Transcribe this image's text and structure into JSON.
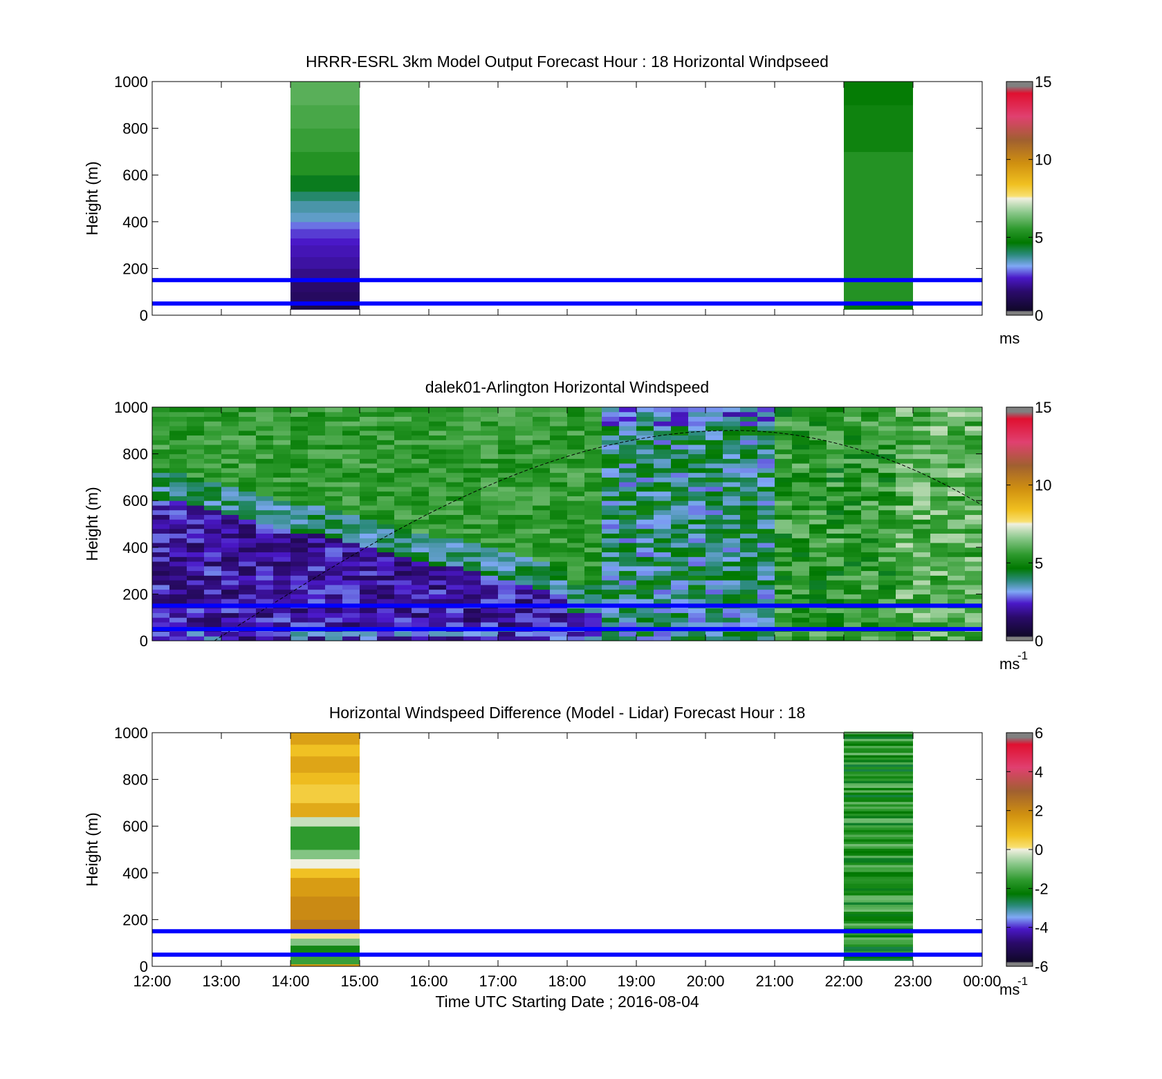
{
  "chart_data": [
    {
      "type": "heatmap",
      "id": "model",
      "title": "HRRR-ESRL 3km Model Output   Forecast Hour : 18 Horizontal Windpseed",
      "ylabel": "Height (m)",
      "xlim": [
        12,
        24
      ],
      "ylim": [
        0,
        1000
      ],
      "yticks": [
        0,
        200,
        400,
        600,
        800,
        1000
      ],
      "x_ticks_labeled": false,
      "colorbar": {
        "min": 0,
        "max": 15,
        "ticks": [
          0,
          5,
          10,
          15
        ],
        "unit_label": "ms",
        "unit_sup": ""
      },
      "reference_lines_m": [
        50,
        150
      ],
      "columns": [
        {
          "t_start": 14,
          "t_end": 15,
          "z_bottom": 25,
          "layers": [
            [
              25,
              60,
              0.5
            ],
            [
              60,
              100,
              1.0
            ],
            [
              100,
              150,
              1.2
            ],
            [
              150,
              200,
              1.5
            ],
            [
              200,
              250,
              1.8
            ],
            [
              250,
              300,
              2.0
            ],
            [
              300,
              330,
              2.2
            ],
            [
              330,
              370,
              2.4
            ],
            [
              370,
              400,
              2.7
            ],
            [
              400,
              440,
              3.3
            ],
            [
              440,
              490,
              3.5
            ],
            [
              490,
              530,
              3.9
            ],
            [
              530,
              600,
              4.4
            ],
            [
              600,
              700,
              5.3
            ],
            [
              700,
              800,
              5.6
            ],
            [
              800,
              900,
              5.8
            ],
            [
              900,
              1000,
              6.0
            ]
          ]
        },
        {
          "t_start": 22,
          "t_end": 23,
          "z_bottom": 25,
          "layers": [
            [
              25,
              50,
              4.6
            ],
            [
              50,
              700,
              5.3
            ],
            [
              700,
              900,
              4.9
            ],
            [
              900,
              1000,
              4.7
            ]
          ]
        }
      ]
    },
    {
      "type": "heatmap",
      "id": "lidar",
      "title": "dalek01-Arlington  Horizontal Windspeed",
      "ylabel": "Height (m)",
      "xlim": [
        12,
        24
      ],
      "ylim": [
        0,
        1000
      ],
      "yticks": [
        0,
        200,
        400,
        600,
        800,
        1000
      ],
      "x_ticks_labeled": false,
      "colorbar": {
        "min": 0,
        "max": 15,
        "ticks": [
          0,
          5,
          10,
          15
        ],
        "unit_label": "ms",
        "unit_sup": "-1"
      },
      "reference_lines_m": [
        50,
        150
      ],
      "data_range_hours": [
        12,
        23.85
      ],
      "blh_curve": {
        "start_hour": 12.9,
        "peak_hour": 20.4,
        "peak_m": 900,
        "end_hour": 24,
        "end_m": 580
      }
    },
    {
      "type": "heatmap",
      "id": "diff",
      "title": "Horizontal Windspeed Difference (Model - Lidar) Forecast Hour : 18",
      "ylabel": "Height (m)",
      "xlabel": "Time UTC  Starting Date ; 2016-08-04",
      "xlim": [
        12,
        24
      ],
      "ylim": [
        0,
        1000
      ],
      "yticks": [
        0,
        200,
        400,
        600,
        800,
        1000
      ],
      "xticks": [
        "12:00",
        "13:00",
        "14:00",
        "15:00",
        "16:00",
        "17:00",
        "18:00",
        "19:00",
        "20:00",
        "21:00",
        "22:00",
        "23:00",
        "00:00"
      ],
      "x_ticks_labeled": true,
      "colorbar": {
        "min": -6,
        "max": 6,
        "ticks": [
          -6,
          -4,
          -2,
          0,
          2,
          4,
          6
        ],
        "unit_label": "ms",
        "unit_sup": "-1"
      },
      "reference_lines_m": [
        50,
        150
      ],
      "columns": [
        {
          "t_start": 14,
          "t_end": 15,
          "z_bottom": 0,
          "layers": [
            [
              0,
              10,
              1.5
            ],
            [
              10,
              50,
              -1.5
            ],
            [
              50,
              90,
              -2.0
            ],
            [
              90,
              120,
              -0.8
            ],
            [
              120,
              140,
              0.1
            ],
            [
              140,
              160,
              -0.2
            ],
            [
              160,
              200,
              2.2
            ],
            [
              200,
              300,
              1.9
            ],
            [
              300,
              380,
              1.5
            ],
            [
              380,
              420,
              0.7
            ],
            [
              420,
              460,
              0.0
            ],
            [
              460,
              500,
              -0.8
            ],
            [
              500,
              600,
              -1.6
            ],
            [
              600,
              640,
              -0.3
            ],
            [
              640,
              700,
              1.2
            ],
            [
              700,
              780,
              0.5
            ],
            [
              780,
              830,
              0.8
            ],
            [
              830,
              900,
              1.3
            ],
            [
              900,
              950,
              0.7
            ],
            [
              950,
              1000,
              1.4
            ]
          ]
        },
        {
          "t_start": 22,
          "t_end": 23,
          "z_bottom": 25,
          "layers": [],
          "stripe_base": -1.8
        }
      ]
    }
  ]
}
